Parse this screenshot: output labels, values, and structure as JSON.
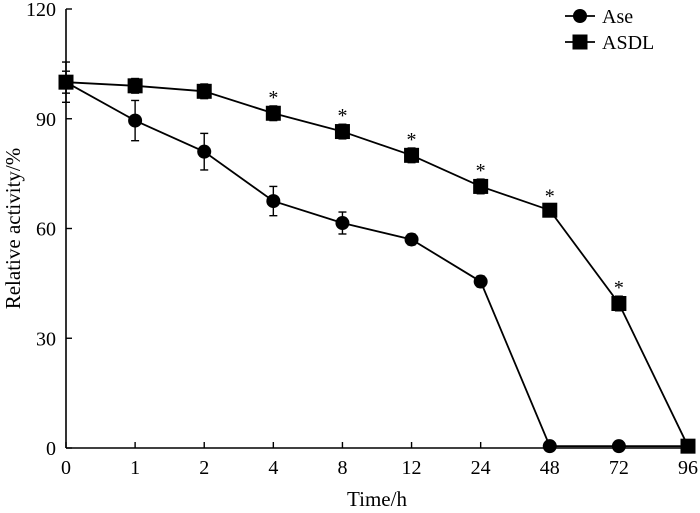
{
  "chart_data": {
    "type": "line",
    "xlabel": "Time/h",
    "ylabel": "Relative activity/%",
    "categories": [
      "0",
      "1",
      "2",
      "4",
      "8",
      "12",
      "24",
      "48",
      "72",
      "96"
    ],
    "ylim": [
      0,
      120
    ],
    "yticks": [
      "0",
      "30",
      "60",
      "90",
      "120"
    ],
    "grid": false,
    "legend_position": "top-right",
    "significance_marker": "*",
    "series": [
      {
        "name": "Ase",
        "marker": "circle",
        "values": [
          100,
          89.5,
          81,
          67.5,
          61.5,
          57,
          45.5,
          0.5,
          0.5,
          0.5
        ],
        "errors": [
          5.5,
          5.5,
          5,
          4,
          3,
          1.5,
          1.5,
          0.5,
          0.5,
          0.5
        ]
      },
      {
        "name": "ASDL",
        "marker": "square",
        "values": [
          100,
          99,
          97.5,
          91.5,
          86.5,
          80,
          71.5,
          65,
          39.5,
          0.5
        ],
        "errors": [
          3,
          2,
          2,
          2,
          2,
          2,
          2,
          1.5,
          2,
          0.5
        ],
        "significant": [
          false,
          false,
          false,
          true,
          true,
          true,
          true,
          true,
          true,
          false
        ]
      }
    ],
    "colors": {
      "line": "#000000",
      "marker": "#000000"
    }
  }
}
